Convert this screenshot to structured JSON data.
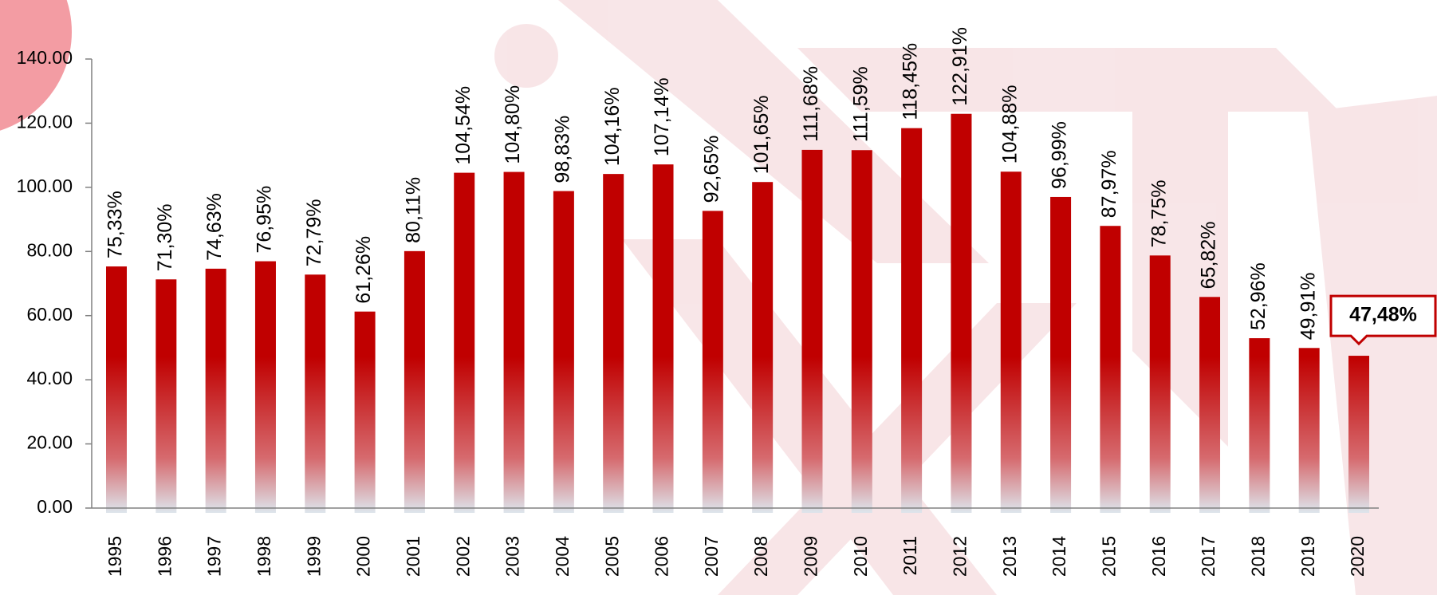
{
  "chart_data": {
    "type": "bar",
    "categories": [
      "1995",
      "1996",
      "1997",
      "1998",
      "1999",
      "2000",
      "2001",
      "2002",
      "2003",
      "2004",
      "2005",
      "2006",
      "2007",
      "2008",
      "2009",
      "2010",
      "2011",
      "2012",
      "2013",
      "2014",
      "2015",
      "2016",
      "2017",
      "2018",
      "2019",
      "2020"
    ],
    "values": [
      75.33,
      71.3,
      74.63,
      76.95,
      72.79,
      61.26,
      80.11,
      104.54,
      104.8,
      98.83,
      104.16,
      107.14,
      92.65,
      101.65,
      111.68,
      111.59,
      118.45,
      122.91,
      104.88,
      96.99,
      87.97,
      78.75,
      65.82,
      52.96,
      49.91,
      47.48
    ],
    "value_labels": [
      "75,33%",
      "71,30%",
      "74,63%",
      "76,95%",
      "72,79%",
      "61,26%",
      "80,11%",
      "104,54%",
      "104,80%",
      "98,83%",
      "104,16%",
      "107,14%",
      "92,65%",
      "101,65%",
      "111,68%",
      "111,59%",
      "118,45%",
      "122,91%",
      "104,88%",
      "96,99%",
      "87,97%",
      "78,75%",
      "65,82%",
      "52,96%",
      "49,91%",
      "47,48%"
    ],
    "color": "#c00000",
    "ylim": [
      0,
      140
    ],
    "yticks": [
      {
        "value": 0,
        "label": "0.00"
      },
      {
        "value": 20,
        "label": "20.00"
      },
      {
        "value": 40,
        "label": "40.00"
      },
      {
        "value": 60,
        "label": "60.00"
      },
      {
        "value": 80,
        "label": "80.00"
      },
      {
        "value": 100,
        "label": "100.00"
      },
      {
        "value": 120,
        "label": "120.00"
      },
      {
        "value": 140,
        "label": "140.00"
      }
    ]
  }
}
